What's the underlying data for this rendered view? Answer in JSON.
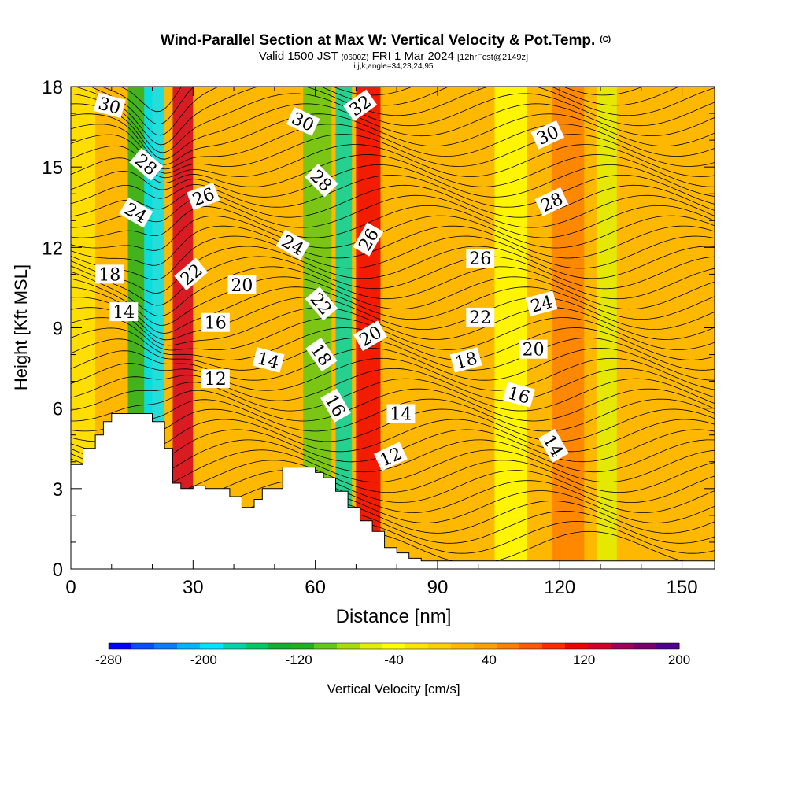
{
  "chart_data": {
    "type": "heatmap",
    "title": "Wind-Parallel Section at Max W: Vertical Velocity & Pot.Temp.",
    "title_suffix": "(C)",
    "subtitle": {
      "valid": "Valid 1500 JST",
      "utc": "(0600Z)",
      "date": "FRI 1 Mar 2024",
      "forecast": "[12hrFcst@2149z]"
    },
    "subtitle2": "i,j,k,angle=34,23,24,95",
    "xlabel": "Distance [nm]",
    "ylabel": "Height [Kft MSL]",
    "xlim": [
      0,
      158
    ],
    "ylim": [
      0,
      18
    ],
    "xticks": [
      "0",
      "30",
      "60",
      "90",
      "120",
      "150"
    ],
    "yticks": [
      "0",
      "3",
      "6",
      "9",
      "12",
      "15",
      "18"
    ],
    "colorbar": {
      "label": "Vertical Velocity [cm/s]",
      "ticks": [
        "-280",
        "-200",
        "-120",
        "-40",
        "40",
        "120",
        "200"
      ],
      "colors": [
        "#0000ff",
        "#0a4cff",
        "#0a7cff",
        "#00b4ff",
        "#00e4ff",
        "#00d4a8",
        "#00c864",
        "#10b030",
        "#22b022",
        "#64c818",
        "#a8dc0a",
        "#e0f000",
        "#ffff00",
        "#ffe400",
        "#ffd000",
        "#ffb800",
        "#ffa000",
        "#ff7f00",
        "#ff5a00",
        "#ff2a00",
        "#f00000",
        "#d20028",
        "#a0005a",
        "#78006e",
        "#500090"
      ]
    },
    "shading_bands": [
      {
        "x0": 0,
        "x1": 6,
        "w": -30
      },
      {
        "x0": 14,
        "x1": 20,
        "w": -120
      },
      {
        "x0": 18,
        "x1": 23,
        "w": -200
      },
      {
        "x0": 25,
        "x1": 30,
        "w": 140
      },
      {
        "x0": 57,
        "x1": 64,
        "w": -100
      },
      {
        "x0": 65,
        "x1": 69,
        "w": -180
      },
      {
        "x0": 70,
        "x1": 76,
        "w": 120
      },
      {
        "x0": 104,
        "x1": 112,
        "w": -40
      },
      {
        "x0": 118,
        "x1": 126,
        "w": 60
      },
      {
        "x0": 129,
        "x1": 134,
        "w": -60
      }
    ],
    "terrain": [
      [
        0,
        3.9
      ],
      [
        3,
        3.9
      ],
      [
        3,
        4.5
      ],
      [
        6,
        4.5
      ],
      [
        6,
        5.0
      ],
      [
        8,
        5.0
      ],
      [
        8,
        5.5
      ],
      [
        10,
        5.5
      ],
      [
        10,
        5.8
      ],
      [
        20,
        5.8
      ],
      [
        20,
        5.5
      ],
      [
        23,
        5.5
      ],
      [
        23,
        4.5
      ],
      [
        25,
        4.5
      ],
      [
        25,
        3.2
      ],
      [
        27,
        3.2
      ],
      [
        27,
        3.0
      ],
      [
        30,
        3.0
      ],
      [
        30,
        3.1
      ],
      [
        33,
        3.1
      ],
      [
        33,
        3.0
      ],
      [
        39,
        3.0
      ],
      [
        39,
        2.7
      ],
      [
        42,
        2.7
      ],
      [
        42,
        2.3
      ],
      [
        45,
        2.3
      ],
      [
        45,
        2.6
      ],
      [
        47,
        2.6
      ],
      [
        47,
        3.0
      ],
      [
        52,
        3.0
      ],
      [
        52,
        3.8
      ],
      [
        60,
        3.8
      ],
      [
        60,
        3.6
      ],
      [
        62,
        3.6
      ],
      [
        62,
        3.4
      ],
      [
        65,
        3.4
      ],
      [
        65,
        2.9
      ],
      [
        68,
        2.9
      ],
      [
        68,
        2.3
      ],
      [
        71,
        2.3
      ],
      [
        71,
        1.8
      ],
      [
        74,
        1.8
      ],
      [
        74,
        1.4
      ],
      [
        77,
        1.4
      ],
      [
        77,
        0.8
      ],
      [
        80,
        0.8
      ],
      [
        80,
        0.6
      ],
      [
        83,
        0.6
      ],
      [
        83,
        0.4
      ],
      [
        86,
        0.4
      ],
      [
        86,
        0.3
      ],
      [
        158,
        0.3
      ]
    ],
    "contour_labels": [
      {
        "text": "30",
        "x": 9.5,
        "y": 17.3,
        "angle": 15
      },
      {
        "text": "28",
        "x": 18.5,
        "y": 15.1,
        "angle": 40
      },
      {
        "text": "24",
        "x": 16,
        "y": 13.3,
        "angle": 30
      },
      {
        "text": "18",
        "x": 9.5,
        "y": 11.0,
        "angle": 0
      },
      {
        "text": "14",
        "x": 13,
        "y": 9.6,
        "angle": 0
      },
      {
        "text": "26",
        "x": 32.5,
        "y": 13.9,
        "angle": -20
      },
      {
        "text": "22",
        "x": 29.5,
        "y": 11.0,
        "angle": -40
      },
      {
        "text": "20",
        "x": 42,
        "y": 10.6,
        "angle": 0
      },
      {
        "text": "16",
        "x": 35.5,
        "y": 9.2,
        "angle": 0
      },
      {
        "text": "14",
        "x": 48.5,
        "y": 7.8,
        "angle": 15
      },
      {
        "text": "12",
        "x": 35.5,
        "y": 7.1,
        "angle": 0
      },
      {
        "text": "30",
        "x": 57,
        "y": 16.7,
        "angle": 25
      },
      {
        "text": "28",
        "x": 61.5,
        "y": 14.5,
        "angle": 45
      },
      {
        "text": "24",
        "x": 54.5,
        "y": 12.1,
        "angle": 30
      },
      {
        "text": "22",
        "x": 61.5,
        "y": 9.9,
        "angle": 50
      },
      {
        "text": "18",
        "x": 61.5,
        "y": 8.0,
        "angle": 55
      },
      {
        "text": "16",
        "x": 65,
        "y": 6.1,
        "angle": 60
      },
      {
        "text": "32",
        "x": 71,
        "y": 17.3,
        "angle": -35
      },
      {
        "text": "26",
        "x": 73,
        "y": 12.3,
        "angle": -60
      },
      {
        "text": "20",
        "x": 73.5,
        "y": 8.7,
        "angle": -30
      },
      {
        "text": "14",
        "x": 81,
        "y": 5.8,
        "angle": 0
      },
      {
        "text": "12",
        "x": 78.5,
        "y": 4.2,
        "angle": -25
      },
      {
        "text": "26",
        "x": 100.5,
        "y": 11.6,
        "angle": 0
      },
      {
        "text": "22",
        "x": 100.5,
        "y": 9.4,
        "angle": 0
      },
      {
        "text": "18",
        "x": 97,
        "y": 7.8,
        "angle": -15
      },
      {
        "text": "20",
        "x": 113.5,
        "y": 8.2,
        "angle": 0
      },
      {
        "text": "16",
        "x": 110,
        "y": 6.5,
        "angle": 15
      },
      {
        "text": "24",
        "x": 115.5,
        "y": 9.9,
        "angle": -15
      },
      {
        "text": "30",
        "x": 117,
        "y": 16.2,
        "angle": -25
      },
      {
        "text": "28",
        "x": 118,
        "y": 13.7,
        "angle": -25
      },
      {
        "text": "14",
        "x": 118.5,
        "y": 4.6,
        "angle": 60
      }
    ]
  }
}
